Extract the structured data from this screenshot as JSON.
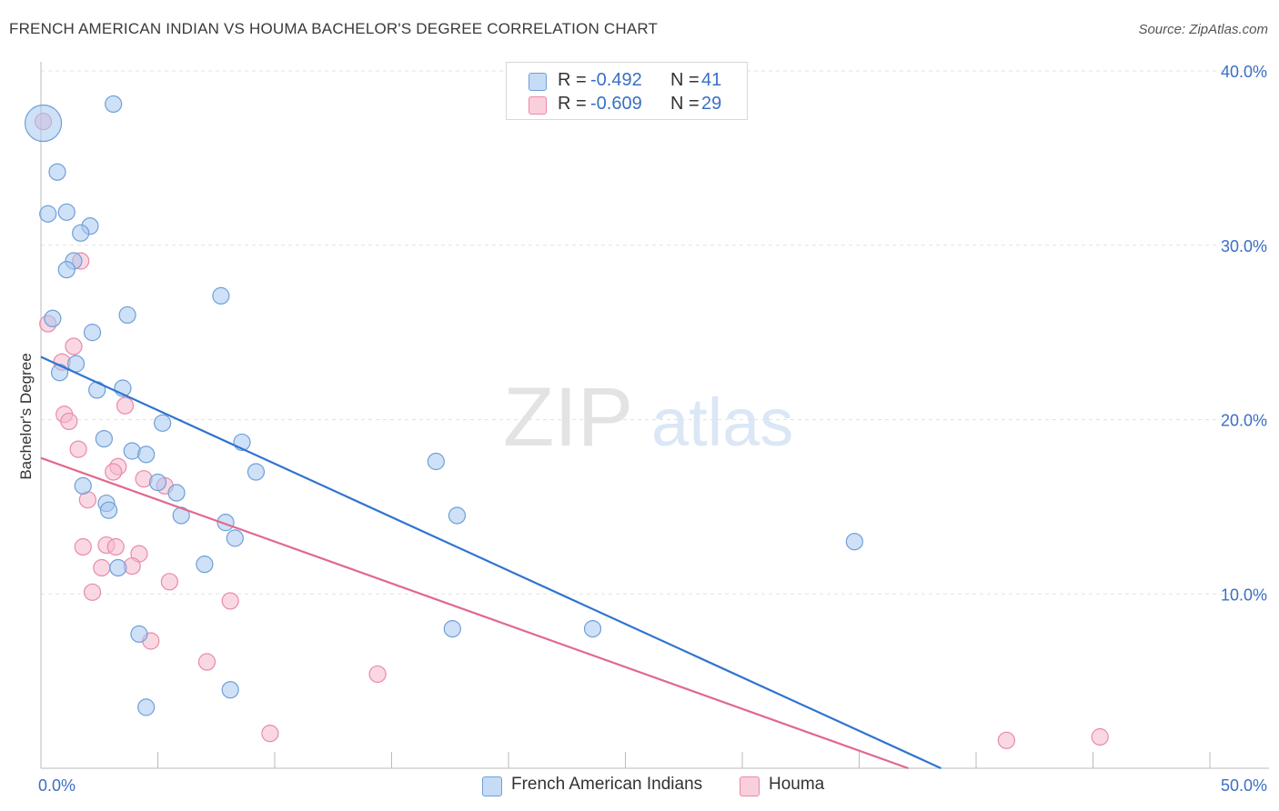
{
  "title": "FRENCH AMERICAN INDIAN VS HOUMA BACHELOR'S DEGREE CORRELATION CHART",
  "source": "Source: ZipAtlas.com",
  "watermark": {
    "zip": "ZIP",
    "atlas": "atlas"
  },
  "legend_top": [
    {
      "r_label": "R =",
      "r_value": "-0.492",
      "n_label": "N =",
      "n_value": "41"
    },
    {
      "r_label": "R =",
      "r_value": "-0.609",
      "n_label": "N =",
      "n_value": "29"
    }
  ],
  "legend_bottom": [
    {
      "label": "French American Indians"
    },
    {
      "label": "Houma"
    }
  ],
  "colors": {
    "blue_fill": "#a8c8f0",
    "blue_stroke": "#6f9fd8",
    "blue_line": "#2f74d0",
    "pink_fill": "#f6b8cc",
    "pink_stroke": "#e98aa8",
    "pink_line": "#e0688f",
    "axis_text": "#3a6fc4",
    "grid": "#e3e3e3"
  },
  "chart_data": {
    "type": "scatter",
    "title": "FRENCH AMERICAN INDIAN VS HOUMA BACHELOR'S DEGREE CORRELATION CHART",
    "xlabel": "",
    "ylabel": "Bachelor's Degree",
    "xlim": [
      0,
      50
    ],
    "ylim": [
      0,
      40
    ],
    "x_tick_labels": [
      "0.0%",
      "50.0%"
    ],
    "y_ticks": [
      10,
      20,
      30,
      40
    ],
    "y_tick_labels": [
      "10.0%",
      "20.0%",
      "30.0%",
      "40.0%"
    ],
    "grid": true,
    "series": [
      {
        "name": "French American Indians",
        "color": "blue",
        "points": [
          [
            0.1,
            37.0,
            20
          ],
          [
            3.1,
            38.1,
            9
          ],
          [
            0.7,
            34.2,
            9
          ],
          [
            0.3,
            31.8,
            9
          ],
          [
            1.1,
            31.9,
            9
          ],
          [
            2.1,
            31.1,
            9
          ],
          [
            1.7,
            30.7,
            9
          ],
          [
            1.4,
            29.1,
            9
          ],
          [
            1.1,
            28.6,
            9
          ],
          [
            7.7,
            27.1,
            9
          ],
          [
            0.5,
            25.8,
            9
          ],
          [
            3.7,
            26.0,
            9
          ],
          [
            2.2,
            25.0,
            9
          ],
          [
            1.5,
            23.2,
            9
          ],
          [
            0.8,
            22.7,
            9
          ],
          [
            2.4,
            21.7,
            9
          ],
          [
            3.5,
            21.8,
            9
          ],
          [
            5.2,
            19.8,
            9
          ],
          [
            2.7,
            18.9,
            9
          ],
          [
            3.9,
            18.2,
            9
          ],
          [
            4.5,
            18.0,
            9
          ],
          [
            8.6,
            18.7,
            9
          ],
          [
            9.2,
            17.0,
            9
          ],
          [
            16.9,
            17.6,
            9
          ],
          [
            1.8,
            16.2,
            9
          ],
          [
            5.0,
            16.4,
            9
          ],
          [
            5.8,
            15.8,
            9
          ],
          [
            2.8,
            15.2,
            9
          ],
          [
            2.9,
            14.8,
            9
          ],
          [
            6.0,
            14.5,
            9
          ],
          [
            7.9,
            14.1,
            9
          ],
          [
            17.8,
            14.5,
            9
          ],
          [
            8.3,
            13.2,
            9
          ],
          [
            34.8,
            13.0,
            9
          ],
          [
            7.0,
            11.7,
            9
          ],
          [
            3.3,
            11.5,
            9
          ],
          [
            17.6,
            8.0,
            9
          ],
          [
            23.6,
            8.0,
            9
          ],
          [
            4.2,
            7.7,
            9
          ],
          [
            8.1,
            4.5,
            9
          ],
          [
            4.5,
            3.5,
            9
          ]
        ],
        "trend": {
          "x": [
            0.0,
            38.5
          ],
          "y": [
            23.6,
            0.0
          ]
        }
      },
      {
        "name": "Houma",
        "color": "pink",
        "points": [
          [
            0.1,
            37.1,
            9
          ],
          [
            1.7,
            29.1,
            9
          ],
          [
            0.3,
            25.5,
            9
          ],
          [
            1.4,
            24.2,
            9
          ],
          [
            0.9,
            23.3,
            9
          ],
          [
            3.6,
            20.8,
            9
          ],
          [
            1.0,
            20.3,
            9
          ],
          [
            1.2,
            19.9,
            9
          ],
          [
            1.6,
            18.3,
            9
          ],
          [
            3.3,
            17.3,
            9
          ],
          [
            3.1,
            17.0,
            9
          ],
          [
            4.4,
            16.6,
            9
          ],
          [
            5.3,
            16.2,
            9
          ],
          [
            2.0,
            15.4,
            9
          ],
          [
            1.8,
            12.7,
            9
          ],
          [
            2.8,
            12.8,
            9
          ],
          [
            3.2,
            12.7,
            9
          ],
          [
            4.2,
            12.3,
            9
          ],
          [
            3.9,
            11.6,
            9
          ],
          [
            2.6,
            11.5,
            9
          ],
          [
            5.5,
            10.7,
            9
          ],
          [
            2.2,
            10.1,
            9
          ],
          [
            8.1,
            9.6,
            9
          ],
          [
            4.7,
            7.3,
            9
          ],
          [
            7.1,
            6.1,
            9
          ],
          [
            14.4,
            5.4,
            9
          ],
          [
            9.8,
            2.0,
            9
          ],
          [
            41.3,
            1.6,
            9
          ],
          [
            45.3,
            1.8,
            9
          ]
        ],
        "trend": {
          "x": [
            0.0,
            37.1
          ],
          "y": [
            17.8,
            0.0
          ]
        }
      }
    ]
  }
}
